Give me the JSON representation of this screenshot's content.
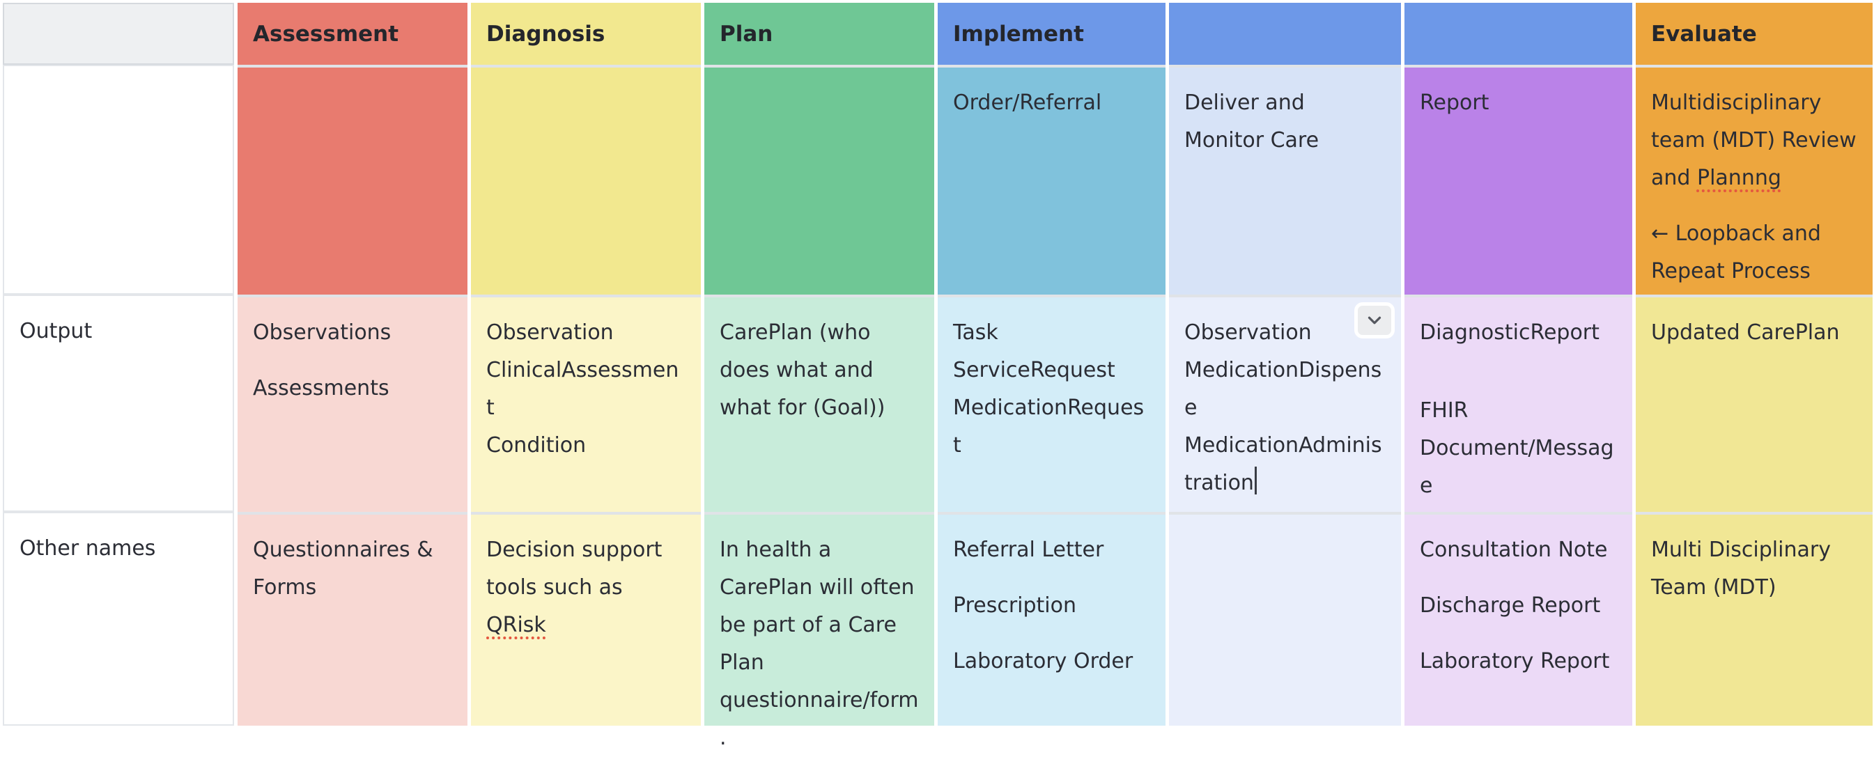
{
  "colors": {
    "assessment": "#e87b6f",
    "assessment_light": "#f8d8d3",
    "diagnosis": "#f2e88f",
    "diagnosis_light": "#fbf5c8",
    "plan": "#6fc795",
    "plan_light": "#c8ecda",
    "implement": "#6d98e8",
    "order_referral": "#80c2dc",
    "order_referral_light": "#d3edf8",
    "deliver_monitor": "#d7e3f7",
    "deliver_monitor_light": "#e9eefb",
    "report": "#ba82e8",
    "report_light": "#ecdaf7",
    "evaluate": "#eda63e",
    "evaluate_light": "#f1e795",
    "gridline": "#e0e3e7",
    "spellcheck_underline": "#e4573f"
  },
  "header_row": {
    "assessment": "Assessment",
    "diagnosis": "Diagnosis",
    "plan": "Plan",
    "implement": "Implement",
    "evaluate": "Evaluate"
  },
  "subphase_row": {
    "order_referral": "Order/Referral",
    "deliver_monitor": "Deliver and Monitor Care",
    "report": "Report",
    "evaluate_before_misspelled": "Multidisciplinary team (MDT) Review and ",
    "evaluate_misspelled_word": "Plannng",
    "evaluate_loopback": "← Loopback and Repeat Process"
  },
  "rows": {
    "output": {
      "label": "Output",
      "assessment": [
        "Observations",
        "Assessments"
      ],
      "diagnosis": [
        "Observation\nClinicalAssessment\nCondition"
      ],
      "plan": [
        "CarePlan (who does what and what for (Goal))"
      ],
      "order_referral": [
        "Task\nServiceRequest\nMedicationRequest"
      ],
      "deliver_monitor_text": "Observation\nMedicationDispense\nMedicationAdministration",
      "report": [
        "DiagnosticReport",
        "FHIR Document/Message"
      ],
      "evaluate": [
        "Updated CarePlan"
      ]
    },
    "other_names": {
      "label": "Other names",
      "assessment": [
        "Questionnaires & Forms"
      ],
      "diagnosis_before_misspelled": "Decision support tools such as ",
      "diagnosis_misspelled_word": "QRisk",
      "plan": [
        "In health a CarePlan will often be part of a Care Plan questionnaire/form."
      ],
      "order_referral": [
        "Referral Letter",
        "Prescription",
        "Laboratory Order"
      ],
      "report": [
        "Consultation Note",
        "Discharge Report",
        "Laboratory Report"
      ],
      "evaluate": [
        "Multi Disciplinary Team (MDT)"
      ]
    }
  },
  "icons": {
    "expand_cell": "chevron-down-icon"
  }
}
